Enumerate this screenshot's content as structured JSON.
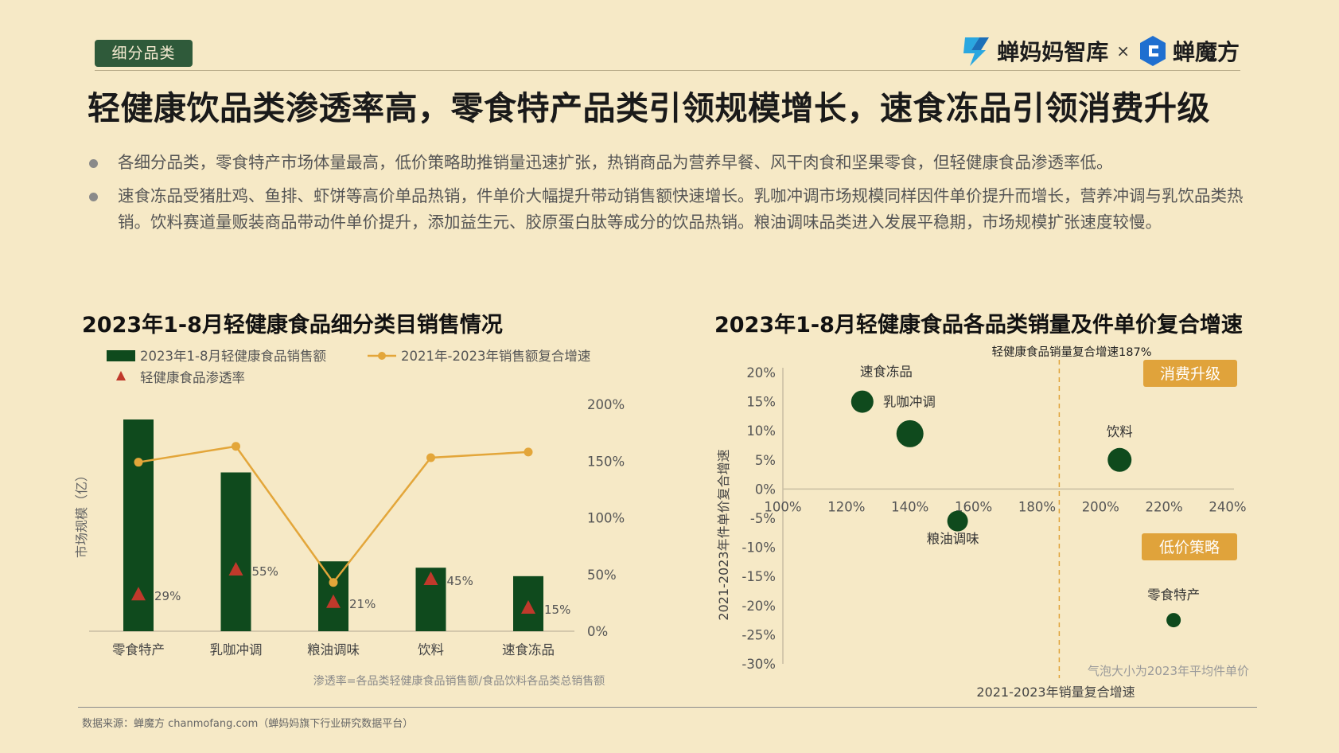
{
  "tag": "细分品类",
  "logo": {
    "brand1": "蝉妈妈智库",
    "separator": "×",
    "brand2": "蝉魔方"
  },
  "headline": "轻健康饮品类渗透率高，零食特产品类引领规模增长，速食冻品引领消费升级",
  "bullets": [
    "各细分品类，零食特产市场体量最高，低价策略助推销量迅速扩张，热销商品为营养早餐、风干肉食和坚果零食，但轻健康食品渗透率低。",
    "速食冻品受猪肚鸡、鱼排、虾饼等高价单品热销，件单价大幅提升带动销售额快速增长。乳咖冲调市场规模同样因件单价提升而增长，营养冲调与乳饮品类热销。饮料赛道量贩装商品带动件单价提升，添加益生元、胶原蛋白肽等成分的饮品热销。粮油调味品类进入发展平稳期，市场规模扩张速度较慢。"
  ],
  "colors": {
    "bar": "#0f4a1d",
    "line": "#e3a63a",
    "marker": "#c0392b",
    "bubble": "#0f4a1d",
    "tag_badge": "#e0a33b",
    "tag_bg": "#2f5a3a"
  },
  "chart_data": [
    {
      "type": "bar",
      "title": "2023年1-8月轻健康食品细分类目销售情况",
      "ylabel": "市场规模（亿）",
      "y2_ticks": [
        "0%",
        "50%",
        "100%",
        "150%",
        "200%"
      ],
      "y2lim": [
        0,
        200
      ],
      "categories": [
        "零食特产",
        "乳咖冲调",
        "粮油调味",
        "饮料",
        "速食冻品"
      ],
      "series": [
        {
          "name": "2023年1-8月轻健康食品销售额",
          "kind": "bar",
          "values": [
            100,
            75,
            33,
            30,
            26
          ]
        },
        {
          "name": "2021年-2023年销售额复合增速",
          "kind": "line",
          "axis": "right",
          "values": [
            149,
            163,
            43,
            153,
            158
          ]
        },
        {
          "name": "轻健康食品渗透率",
          "kind": "marker",
          "values": [
            29,
            55,
            21,
            45,
            15
          ],
          "labels": [
            "29%",
            "55%",
            "21%",
            "45%",
            "15%"
          ]
        }
      ],
      "legend": [
        "2023年1-8月轻健康食品销售额",
        "2021年-2023年销售额复合增速",
        "轻健康食品渗透率"
      ],
      "footnote": "渗透率=各品类轻健康食品销售额/食品饮料各品类总销售额"
    },
    {
      "type": "scatter",
      "title": "2023年1-8月轻健康食品各品类销量及件单价复合增速",
      "xlabel": "2021-2023年销量复合增速",
      "ylabel": "2021-2023年件单价复合增速",
      "x_ticks": [
        "100%",
        "120%",
        "140%",
        "160%",
        "180%",
        "200%",
        "220%",
        "240%"
      ],
      "y_ticks": [
        "20%",
        "15%",
        "10%",
        "5%",
        "0%",
        "-5%",
        "-10%",
        "-15%",
        "-20%",
        "-25%",
        "-30%"
      ],
      "xlim": [
        100,
        240
      ],
      "ylim": [
        -30,
        20
      ],
      "reference_line": {
        "x": 187,
        "label": "轻健康食品销量复合增速187%"
      },
      "points": [
        {
          "name": "速食冻品",
          "x": 125,
          "y": 15,
          "size": 14
        },
        {
          "name": "乳咖冲调",
          "x": 140,
          "y": 9.5,
          "size": 17
        },
        {
          "name": "粮油调味",
          "x": 155,
          "y": -5.5,
          "size": 13
        },
        {
          "name": "饮料",
          "x": 206,
          "y": 5,
          "size": 15
        },
        {
          "name": "零食特产",
          "x": 223,
          "y": -22.5,
          "size": 9
        }
      ],
      "badges": [
        "消费升级",
        "低价策略"
      ],
      "note": "气泡大小为2023年平均件单价"
    }
  ],
  "footer": "数据来源：蝉魔方 chanmofang.com（蝉妈妈旗下行业研究数据平台）"
}
